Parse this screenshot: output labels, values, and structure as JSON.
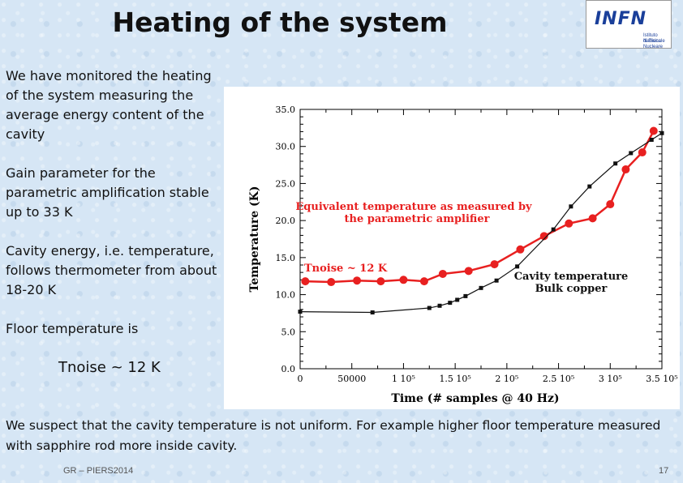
{
  "slide": {
    "title": "Heating of the system",
    "logo": {
      "word": "INFN",
      "sub1": "Istituto Nazionale",
      "sub2": "di Fisica Nucleare"
    },
    "paragraphs": [
      "We have monitored the heating of the system measuring the average energy content of the cavity",
      "Gain parameter for the parametric amplification stable up to 33 K",
      "Cavity energy, i.e. temperature, follows thermometer from about 18-20 K",
      "Floor temperature is"
    ],
    "tnoise": "Tnoise ~ 12 K",
    "bottom_text": "We suspect that the cavity temperature is not uniform. For example higher floor temperature measured with sapphire rod more inside cavity.",
    "footer_left": "GR – PIERS2014",
    "page_number": "17"
  },
  "chart_data": {
    "type": "line",
    "xlabel": "Time (# samples @ 40 Hz)",
    "ylabel": "Temperature (K)",
    "xlim": [
      0,
      350000
    ],
    "ylim": [
      0,
      35
    ],
    "xticks": [
      {
        "v": 0,
        "label": "0"
      },
      {
        "v": 50000,
        "label": "50000"
      },
      {
        "v": 100000,
        "label": "1 10⁵"
      },
      {
        "v": 150000,
        "label": "1.5 10⁵"
      },
      {
        "v": 200000,
        "label": "2 10⁵"
      },
      {
        "v": 250000,
        "label": "2.5 10⁵"
      },
      {
        "v": 300000,
        "label": "3 10⁵"
      },
      {
        "v": 350000,
        "label": "3.5 10⁵"
      }
    ],
    "yticks": [
      {
        "v": 0,
        "label": "0.0"
      },
      {
        "v": 5,
        "label": "5.0"
      },
      {
        "v": 10,
        "label": "10.0"
      },
      {
        "v": 15,
        "label": "15.0"
      },
      {
        "v": 20,
        "label": "20.0"
      },
      {
        "v": 25,
        "label": "25.0"
      },
      {
        "v": 30,
        "label": "30.0"
      },
      {
        "v": 35,
        "label": "35.0"
      }
    ],
    "series": [
      {
        "name": "Equivalent temperature as measured by the parametric amplifier",
        "color": "#e82020",
        "marker": "circle",
        "x": [
          5000,
          30000,
          55000,
          78000,
          100000,
          120000,
          138000,
          163000,
          188000,
          213000,
          236000,
          260000,
          283000,
          300000,
          315000,
          331000,
          342000
        ],
        "y": [
          11.8,
          11.7,
          11.9,
          11.8,
          12.0,
          11.8,
          12.8,
          13.2,
          14.1,
          16.1,
          17.9,
          19.6,
          20.3,
          22.2,
          26.9,
          29.2,
          32.1
        ]
      },
      {
        "name": "Cavity temperature Bulk copper",
        "color": "#111111",
        "marker": "square",
        "x": [
          0,
          70000,
          125000,
          135000,
          145000,
          152000,
          160000,
          175000,
          190000,
          210000,
          245000,
          262000,
          280000,
          305000,
          320000,
          340000,
          350000
        ],
        "y": [
          7.7,
          7.6,
          8.2,
          8.5,
          8.9,
          9.3,
          9.8,
          10.9,
          11.9,
          13.8,
          18.8,
          21.9,
          24.6,
          27.7,
          29.1,
          30.9,
          31.8
        ]
      }
    ],
    "annotations": [
      {
        "text": "Equivalent temperature as measured by",
        "color": "#e82020"
      },
      {
        "text": "the parametric amplifier",
        "color": "#e82020"
      },
      {
        "text": "Tnoise ~ 12 K",
        "color": "#e82020"
      },
      {
        "text": "Cavity temperature",
        "color": "#111111"
      },
      {
        "text": "Bulk copper",
        "color": "#111111"
      }
    ]
  }
}
